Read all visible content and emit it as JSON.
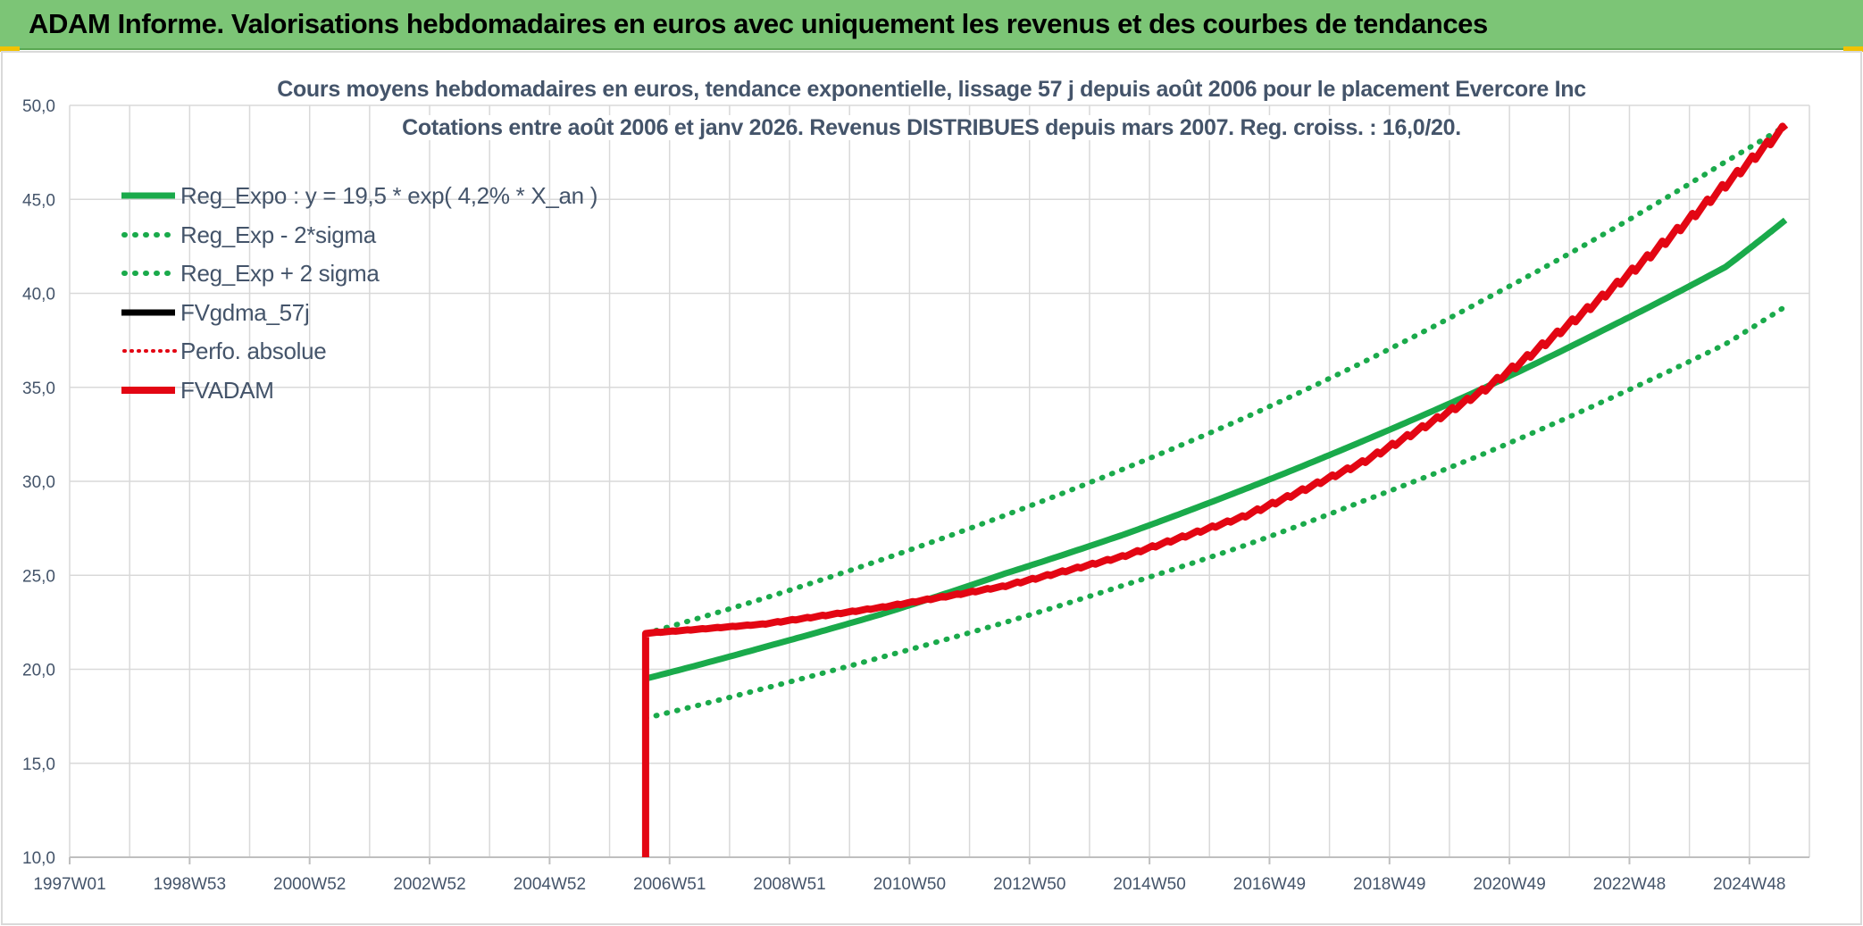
{
  "banner": {
    "title": "ADAM Informe. Valorisations hebdomadaires en euros avec uniquement les revenus et des courbes de tendances",
    "background_color": "#7cc576"
  },
  "chart_data": {
    "type": "line",
    "title": [
      "Cours moyens hebdomadaires en euros, tendance exponentielle, lissage 57 j depuis août 2006 pour le placement Evercore Inc",
      "Cotations entre août 2006 et janv 2026. Revenus DISTRIBUES depuis mars 2007. Reg. croiss. : 16,0/20."
    ],
    "xlabel": "",
    "ylabel": "",
    "x_axis": {
      "type": "time",
      "range_years": [
        1997.0,
        2026.0
      ],
      "tick_labels": [
        "1997W01",
        "1998W53",
        "2000W52",
        "2002W52",
        "2004W52",
        "2006W51",
        "2008W51",
        "2010W50",
        "2012W50",
        "2014W50",
        "2016W49",
        "2018W49",
        "2020W49",
        "2022W48",
        "2024W48"
      ],
      "tick_years": [
        1997.0,
        1999.0,
        2001.0,
        2003.0,
        2005.0,
        2007.0,
        2009.0,
        2011.0,
        2013.0,
        2015.0,
        2017.0,
        2019.0,
        2021.0,
        2023.0,
        2025.0
      ]
    },
    "y_axis": {
      "range": [
        10,
        50
      ],
      "tick_values": [
        10,
        15,
        20,
        25,
        30,
        35,
        40,
        45,
        50
      ],
      "tick_labels": [
        "10,0",
        "15,0",
        "20,0",
        "25,0",
        "30,0",
        "35,0",
        "40,0",
        "45,0",
        "50,0"
      ]
    },
    "grid": true,
    "legend_position": "top-left",
    "series": [
      {
        "name": "Reg_Expo : y = 19,5 * exp( 4,2% *  X_an )",
        "color": "#1aaa4b",
        "style": "solid",
        "points": [
          [
            2006.6,
            19.5
          ],
          [
            2008.6,
            21.2
          ],
          [
            2010.6,
            23.0
          ],
          [
            2012.6,
            25.1
          ],
          [
            2014.6,
            27.2
          ],
          [
            2016.6,
            29.6
          ],
          [
            2018.6,
            32.2
          ],
          [
            2020.6,
            35.0
          ],
          [
            2022.6,
            38.1
          ],
          [
            2024.6,
            41.4
          ],
          [
            2025.6,
            43.9
          ]
        ]
      },
      {
        "name": "Reg_Exp - 2*sigma",
        "color": "#1aaa4b",
        "style": "dotted",
        "points": [
          [
            2006.6,
            17.4
          ],
          [
            2008.6,
            19.0
          ],
          [
            2010.6,
            20.7
          ],
          [
            2012.6,
            22.5
          ],
          [
            2014.6,
            24.5
          ],
          [
            2016.6,
            26.6
          ],
          [
            2018.6,
            29.0
          ],
          [
            2020.6,
            31.5
          ],
          [
            2022.6,
            34.3
          ],
          [
            2024.6,
            37.3
          ],
          [
            2025.6,
            39.3
          ]
        ]
      },
      {
        "name": "Reg_Exp + 2 sigma",
        "color": "#1aaa4b",
        "style": "dotted",
        "points": [
          [
            2006.6,
            21.9
          ],
          [
            2008.6,
            23.8
          ],
          [
            2010.6,
            25.9
          ],
          [
            2012.6,
            28.2
          ],
          [
            2014.6,
            30.7
          ],
          [
            2016.6,
            33.4
          ],
          [
            2018.6,
            36.4
          ],
          [
            2020.6,
            39.7
          ],
          [
            2022.6,
            43.2
          ],
          [
            2024.6,
            47.0
          ],
          [
            2025.6,
            48.9
          ]
        ]
      },
      {
        "name": "FVgdma_57j",
        "color": "#000000",
        "style": "solid",
        "points": []
      },
      {
        "name": "Perfo. absolue",
        "color": "#e30613",
        "style": "dotted",
        "points": []
      },
      {
        "name": "FVADAM",
        "color": "#e30613",
        "style": "solid-thick",
        "points": [
          [
            2006.6,
            10.0
          ],
          [
            2006.6,
            21.9
          ],
          [
            2008.6,
            22.4
          ],
          [
            2010.6,
            23.3
          ],
          [
            2012.6,
            24.4
          ],
          [
            2014.6,
            26.0
          ],
          [
            2016.6,
            28.1
          ],
          [
            2018.6,
            31.0
          ],
          [
            2020.6,
            34.8
          ],
          [
            2022.6,
            39.8
          ],
          [
            2024.6,
            45.6
          ],
          [
            2025.6,
            48.7
          ]
        ]
      }
    ]
  }
}
